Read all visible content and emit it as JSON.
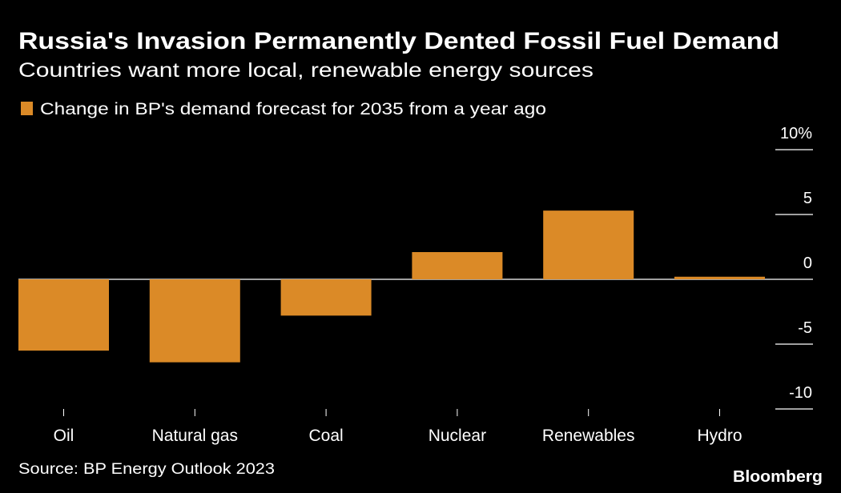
{
  "chart_data": {
    "type": "bar",
    "title": "Russia's Invasion Permanently Dented Fossil Fuel Demand",
    "subtitle": "Countries want more local, renewable energy sources",
    "legend": [
      {
        "name": "Change in BP's demand forecast for 2035 from a year ago",
        "color": "#db8a27"
      }
    ],
    "legend_position": "top-left",
    "categories": [
      "Oil",
      "Natural gas",
      "Coal",
      "Nuclear",
      "Renewables",
      "Hydro"
    ],
    "series": [
      {
        "name": "Change in BP's demand forecast for 2035 from a year ago",
        "values": [
          -5.5,
          -6.4,
          -2.8,
          2.1,
          5.3,
          0.2
        ]
      }
    ],
    "ylim": [
      -10,
      10
    ],
    "yticks": [
      10,
      5,
      0,
      -5,
      -10
    ],
    "ytick_labels": [
      "10%",
      "5",
      "0",
      "-5",
      "-10"
    ],
    "y_axis_position": "right",
    "xlabel": "",
    "ylabel": "",
    "source": "Source: BP Energy Outlook 2023",
    "brand": "Bloomberg",
    "colors": {
      "background": "#000000",
      "bar": "#db8a27",
      "text": "#ffffff"
    }
  }
}
